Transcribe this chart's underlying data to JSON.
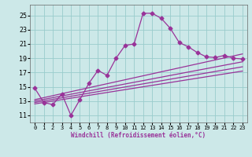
{
  "xlabel": "Windchill (Refroidissement éolien,°C)",
  "background_color": "#cce8e8",
  "grid_color": "#99cccc",
  "line_color": "#993399",
  "xlim": [
    -0.5,
    23.5
  ],
  "ylim": [
    10.0,
    26.5
  ],
  "xticks": [
    0,
    1,
    2,
    3,
    4,
    5,
    6,
    7,
    8,
    9,
    10,
    11,
    12,
    13,
    14,
    15,
    16,
    17,
    18,
    19,
    20,
    21,
    22,
    23
  ],
  "yticks": [
    11,
    13,
    15,
    17,
    19,
    21,
    23,
    25
  ],
  "main_series": {
    "x": [
      0,
      1,
      2,
      3,
      4,
      5,
      6,
      7,
      8,
      9,
      10,
      11,
      12,
      13,
      14,
      15,
      16,
      17,
      18,
      19,
      20,
      21,
      22,
      23
    ],
    "y": [
      14.8,
      12.8,
      12.5,
      14.0,
      11.0,
      13.2,
      15.5,
      17.3,
      16.6,
      19.0,
      20.8,
      21.0,
      25.3,
      25.3,
      24.6,
      23.2,
      21.2,
      20.6,
      19.8,
      19.2,
      19.1,
      19.4,
      19.0,
      18.9
    ]
  },
  "straight_lines": [
    {
      "x": [
        0,
        23
      ],
      "y": [
        13.2,
        19.6
      ]
    },
    {
      "x": [
        0,
        23
      ],
      "y": [
        13.0,
        18.5
      ]
    },
    {
      "x": [
        0,
        23
      ],
      "y": [
        12.8,
        17.8
      ]
    },
    {
      "x": [
        0,
        23
      ],
      "y": [
        12.6,
        17.2
      ]
    }
  ],
  "marker": "D",
  "markersize": 2.5,
  "linewidth": 0.9
}
